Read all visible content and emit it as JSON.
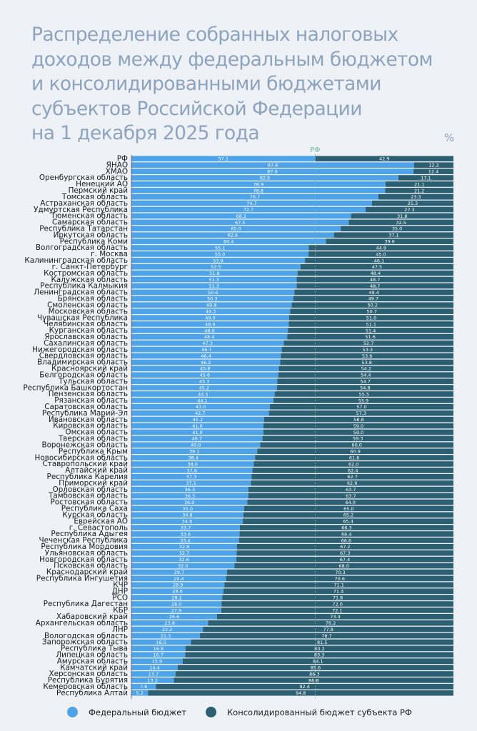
{
  "title": "Распределение собранных налоговых\nдоходов между федеральным бюджетом\nи консолидированными бюджетами\nсубъектов Российской Федерации\nна 1 декабря 2025 года",
  "unit": "%",
  "colors": {
    "federal": "#4ea3e8",
    "regional": "#2d5f73",
    "rf_line": "#7fb8a8",
    "rf_label": "#6fb59a"
  },
  "legend": [
    {
      "label": "Федеральный бюджет",
      "color": "#4ea3e8"
    },
    {
      "label": "Консолидированный бюджет субъекта РФ",
      "color": "#2d5f73"
    }
  ],
  "chart_data": {
    "type": "bar",
    "orientation": "horizontal",
    "stacked": true,
    "title": "Распределение собранных налоговых доходов между федеральным бюджетом и консолидированными бюджетами субъектов Российской Федерации на 1 декабря 2025 года",
    "unit": "%",
    "xlim": [
      0,
      100
    ],
    "reference_line": {
      "label": "РФ",
      "value": 57.1
    },
    "categories": [
      "РФ",
      "ЯНАО",
      "ХМАО",
      "Оренбургская область",
      "Ненецкий АО",
      "Пермский край",
      "Томская область",
      "Астраханская область",
      "Удмуртская Республика",
      "Тюменская область",
      "Самарская область",
      "Республика Татарстан",
      "Иркутская область",
      "Республика Коми",
      "Волгоградская область",
      "г. Москва",
      "Калининградская область",
      "г. Санкт-Петербург",
      "Костромская область",
      "Калужская область",
      "Республика Калмыкия",
      "Ленинградская область",
      "Брянская область",
      "Смоленская область",
      "Московская область",
      "Чувашская Республика",
      "Челябинская область",
      "Курганская область",
      "Ярославская область",
      "Сахалинская область",
      "Нижегородская область",
      "Свердловская область",
      "Владимирская область",
      "Красноярский край",
      "Белгородская область",
      "Тульская область",
      "Республика Башкортостан",
      "Пензенская область",
      "Рязанская область",
      "Саратовская область",
      "Республика Марий-Эл",
      "Ивановская область",
      "Кировская область",
      "Омская область",
      "Тверская область",
      "Воронежская область",
      "Республика Крым",
      "Новосибирская область",
      "Ставропольский край",
      "Алтайский край",
      "Республика Карелия",
      "Приморский край",
      "Орловская область",
      "Тамбовская область",
      "Ростовская область",
      "Республика Саха",
      "Курская область",
      "Еврейская АО",
      "г. Севастополь",
      "Республика Адыгея",
      "Чеченская Республика",
      "Республика Мордовия",
      "Ульяновская область",
      "Новгородская область",
      "Псковская область",
      "Краснодарский край",
      "Республика Ингушетия",
      "КЧР",
      "ДНР",
      "РСО",
      "Республика Дагестан",
      "КБР",
      "Хабаровский край",
      "Архангельская область",
      "ЛНР",
      "Вологодская область",
      "Запорожская область",
      "Республика Тыва",
      "Липецкая область",
      "Амурская область",
      "Камчатский край",
      "Херсонская область",
      "Республика Бурятия",
      "Кемеровская область",
      "Республика Алтай"
    ],
    "series": [
      {
        "name": "Федеральный бюджет",
        "values": [
          "57.1",
          "87.8",
          "87.6",
          "82.9",
          "78.9",
          "78.8",
          "76.7",
          "74.7",
          "72.7",
          "68.2",
          "67.5",
          "65.0",
          "62.9",
          "60.4",
          "55.1",
          "55.0",
          "53.9",
          "52.5",
          "51.6",
          "51.3",
          "51.3",
          "50.6",
          "50.3",
          "49.8",
          "49.3",
          "49.0",
          "48.9",
          "48.6",
          "48.4",
          "47.3",
          "46.7",
          "46.4",
          "46.2",
          "45.8",
          "45.6",
          "45.3",
          "45.2",
          "44.5",
          "44.1",
          "43.0",
          "42.7",
          "41.2",
          "41.0",
          "41.0",
          "40.7",
          "40.0",
          "39.1",
          "38.4",
          "38.0",
          "37.6",
          "37.3",
          "37.1",
          "36.3",
          "36.3",
          "36.0",
          "35.0",
          "34.8",
          "34.6",
          "33.7",
          "33.6",
          "33.4",
          "32.8",
          "32.7",
          "32.6",
          "32.0",
          "29.7",
          "29.4",
          "28.9",
          "28.6",
          "28.2",
          "28.0",
          "27.9",
          "26.6",
          "23.8",
          "22.2",
          "21.3",
          "18.5",
          "16.8",
          "16.7",
          "15.9",
          "14.4",
          "13.7",
          "13.2",
          "7.6",
          "5.2"
        ]
      },
      {
        "name": "Консолидированный бюджет субъекта РФ",
        "values": [
          "42.9",
          "12.2",
          "12.4",
          "17.1",
          "21.1",
          "21.2",
          "23.3",
          "25.3",
          "27.3",
          "31.8",
          "32.5",
          "35.0",
          "37.1",
          "39.6",
          "44.9",
          "45.0",
          "46.1",
          "47.5",
          "48.4",
          "48.7",
          "48.7",
          "49.4",
          "49.7",
          "50.2",
          "50.7",
          "51.0",
          "51.1",
          "51.4",
          "51.6",
          "52.7",
          "53.3",
          "53.6",
          "53.8",
          "54.2",
          "54.4",
          "54.7",
          "54.8",
          "55.5",
          "55.9",
          "57.0",
          "57.3",
          "58.8",
          "59.0",
          "59.0",
          "59.3",
          "60.0",
          "60.9",
          "61.6",
          "62.0",
          "62.4",
          "62.7",
          "62.9",
          "63.7",
          "63.7",
          "64.0",
          "65.0",
          "65.2",
          "65.4",
          "66.3",
          "66.4",
          "66.6",
          "67.2",
          "67.3",
          "67.4",
          "68.0",
          "70.3",
          "70.6",
          "71.1",
          "71.4",
          "71.8",
          "72.0",
          "72.1",
          "73.4",
          "76.2",
          "77.8",
          "78.7",
          "81.5",
          "83.2",
          "83.3",
          "84.1",
          "85.6",
          "86.3",
          "86.8",
          "92.4",
          "94.8"
        ]
      }
    ]
  }
}
